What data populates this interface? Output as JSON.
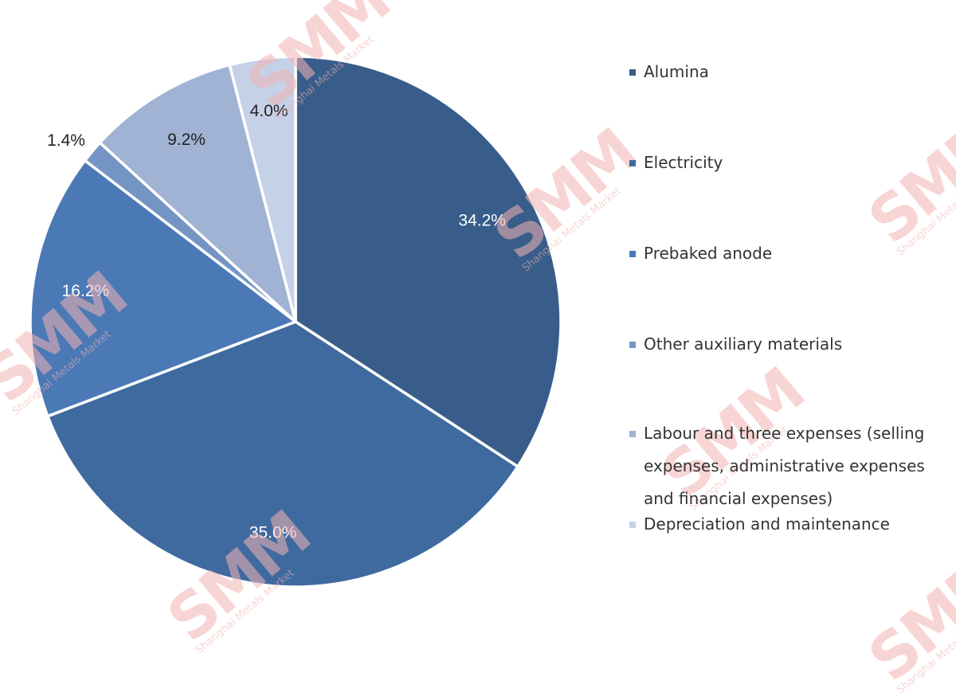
{
  "chart_data": {
    "type": "pie",
    "title": "",
    "start_angle_deg": 0,
    "direction": "clockwise",
    "slices": [
      {
        "label": "Alumina",
        "value": 34.2,
        "display": "34.2%",
        "color": "#385d8a",
        "label_color": "#ffffff"
      },
      {
        "label": "Electricity",
        "value": 35.0,
        "display": "35.0%",
        "color": "#3f6a9f",
        "label_color": "#ffffff"
      },
      {
        "label": "Prebaked anode",
        "value": 16.2,
        "display": "16.2%",
        "color": "#4a79b6",
        "label_color": "#ffffff"
      },
      {
        "label": "Other auxiliary materials",
        "value": 1.4,
        "display": "1.4%",
        "color": "#7495c4",
        "label_color": "#222222",
        "label_outside": true
      },
      {
        "label": "Labour and three expenses (selling expenses, administrative expenses and financial expenses)",
        "value": 9.2,
        "display": "9.2%",
        "color": "#a0b3d4",
        "label_color": "#222222"
      },
      {
        "label": "Depreciation and maintenance",
        "value": 4.0,
        "display": "4.0%",
        "color": "#c5d1e7",
        "label_color": "#222222"
      }
    ],
    "legend_position": "right",
    "grid": false
  },
  "watermark": {
    "text": "SMM",
    "subtext": "Shanghai Metals Market",
    "color": "#f4b3b3"
  }
}
